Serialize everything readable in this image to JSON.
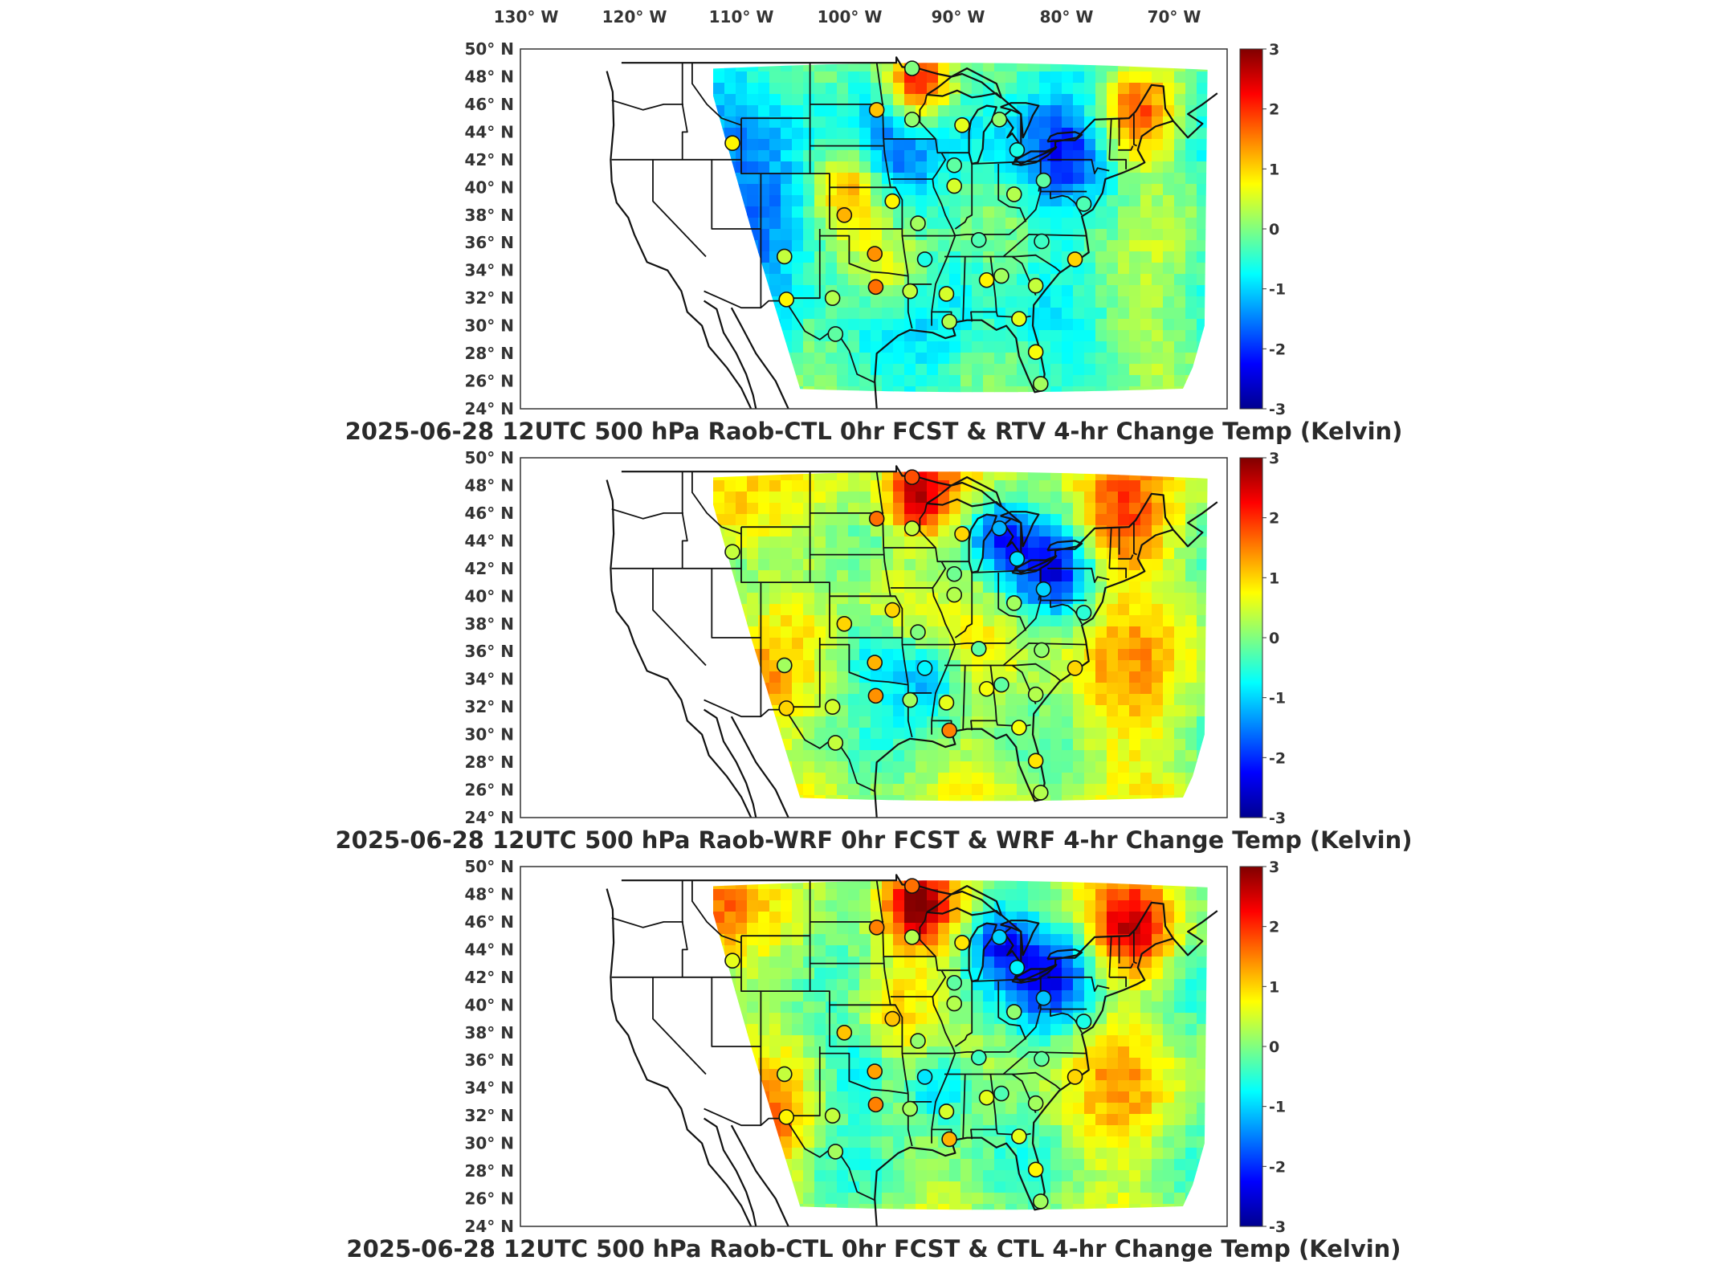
{
  "lon_labels": [
    "130° W",
    "120° W",
    "110° W",
    "100° W",
    "90° W",
    "80° W",
    "70° W"
  ],
  "lat_labels": [
    "50° N",
    "48° N",
    "46° N",
    "44° N",
    "42° N",
    "40° N",
    "38° N",
    "36° N",
    "34° N",
    "32° N",
    "30° N",
    "28° N",
    "26° N",
    "24° N"
  ],
  "colorbar_ticks": [
    "3",
    "2",
    "1",
    "0",
    "-1",
    "-2",
    "-3"
  ],
  "colormap": {
    "name": "jet",
    "min": -3,
    "max": 3,
    "stops": [
      "#00008f",
      "#0000ff",
      "#0080ff",
      "#00ffff",
      "#80ff80",
      "#ffff00",
      "#ff8000",
      "#ff0000",
      "#800000"
    ]
  },
  "panels": [
    {
      "title": "2025-06-28 12UTC 500 hPa Raob-CTL 0hr FCST & RTV 4-hr Change Temp (Kelvin)",
      "base_value": -0.6,
      "blobs": [
        {
          "lon": -93,
          "lat": 47.5,
          "value": 2.4,
          "r": 2.0
        },
        {
          "lon": -71,
          "lat": 45,
          "value": 2.0,
          "r": 2.5
        },
        {
          "lon": -100,
          "lat": 40,
          "value": 1.2,
          "r": 2.0
        },
        {
          "lon": -96,
          "lat": 34,
          "value": 1.0,
          "r": 2.5
        },
        {
          "lon": -78,
          "lat": 42,
          "value": -1.8,
          "r": 2.5
        },
        {
          "lon": -108,
          "lat": 38,
          "value": -1.8,
          "r": 3.0
        },
        {
          "lon": -96,
          "lat": 42,
          "value": -1.2,
          "r": 2.5
        },
        {
          "lon": -72,
          "lat": 32,
          "value": 0.4,
          "r": 4.0
        },
        {
          "lon": -104,
          "lat": 30,
          "value": -0.4,
          "r": 2.0
        },
        {
          "lon": -85,
          "lat": 44,
          "value": -0.8,
          "r": 3.0
        }
      ],
      "stations": [
        {
          "lon": -93.6,
          "lat": 48.6,
          "value": 0.0
        },
        {
          "lon": -97.2,
          "lat": 45.6,
          "value": 1.1
        },
        {
          "lon": -93.6,
          "lat": 44.9,
          "value": 0.1
        },
        {
          "lon": -88.5,
          "lat": 44.5,
          "value": 0.6
        },
        {
          "lon": -84.7,
          "lat": 44.9,
          "value": 0.1
        },
        {
          "lon": -82.9,
          "lat": 42.7,
          "value": -0.6
        },
        {
          "lon": -111.9,
          "lat": 43.2,
          "value": 0.8
        },
        {
          "lon": -89.3,
          "lat": 41.6,
          "value": -0.2
        },
        {
          "lon": -89.3,
          "lat": 40.1,
          "value": 0.5
        },
        {
          "lon": -83.2,
          "lat": 39.5,
          "value": 0.3
        },
        {
          "lon": -80.2,
          "lat": 40.5,
          "value": -0.2
        },
        {
          "lon": -100.5,
          "lat": 38.0,
          "value": 1.2
        },
        {
          "lon": -95.6,
          "lat": 39.0,
          "value": 0.8
        },
        {
          "lon": -93.0,
          "lat": 37.4,
          "value": 0.2
        },
        {
          "lon": -86.8,
          "lat": 36.2,
          "value": -0.3
        },
        {
          "lon": -80.4,
          "lat": 36.1,
          "value": -0.4
        },
        {
          "lon": -76.1,
          "lat": 38.8,
          "value": -0.3
        },
        {
          "lon": -106.6,
          "lat": 35.0,
          "value": 0.4
        },
        {
          "lon": -97.4,
          "lat": 35.2,
          "value": 1.4
        },
        {
          "lon": -92.3,
          "lat": 34.8,
          "value": -0.6
        },
        {
          "lon": -86.0,
          "lat": 33.3,
          "value": 0.8
        },
        {
          "lon": -84.5,
          "lat": 33.6,
          "value": 0.2
        },
        {
          "lon": -81.0,
          "lat": 32.9,
          "value": 0.4
        },
        {
          "lon": -77.0,
          "lat": 34.8,
          "value": 1.0
        },
        {
          "lon": -101.7,
          "lat": 32.0,
          "value": 0.3
        },
        {
          "lon": -97.3,
          "lat": 32.8,
          "value": 1.6
        },
        {
          "lon": -93.8,
          "lat": 32.5,
          "value": 0.4
        },
        {
          "lon": -90.1,
          "lat": 32.3,
          "value": 0.5
        },
        {
          "lon": -106.4,
          "lat": 31.9,
          "value": 0.8
        },
        {
          "lon": -89.8,
          "lat": 30.3,
          "value": 0.3
        },
        {
          "lon": -82.7,
          "lat": 30.5,
          "value": 0.6
        },
        {
          "lon": -101.4,
          "lat": 29.4,
          "value": -0.2
        },
        {
          "lon": -81.0,
          "lat": 28.1,
          "value": 0.7
        },
        {
          "lon": -80.5,
          "lat": 25.8,
          "value": 0.2
        }
      ]
    },
    {
      "title": "2025-06-28 12UTC 500 hPa Raob-WRF 0hr FCST & WRF 4-hr Change Temp (Kelvin)",
      "base_value": 0.2,
      "blobs": [
        {
          "lon": -93,
          "lat": 47.2,
          "value": 2.6,
          "r": 2.0
        },
        {
          "lon": -73,
          "lat": 45,
          "value": 1.8,
          "r": 3.0
        },
        {
          "lon": -113,
          "lat": 46,
          "value": 1.2,
          "r": 2.5
        },
        {
          "lon": -96,
          "lat": 40,
          "value": 1.0,
          "r": 2.5
        },
        {
          "lon": -79,
          "lat": 42,
          "value": -2.0,
          "r": 2.5
        },
        {
          "lon": -85,
          "lat": 44.5,
          "value": -1.8,
          "r": 2.0
        },
        {
          "lon": -92,
          "lat": 34,
          "value": -1.4,
          "r": 2.0
        },
        {
          "lon": -110,
          "lat": 33,
          "value": 1.2,
          "r": 2.5
        },
        {
          "lon": -73,
          "lat": 33,
          "value": 1.0,
          "r": 4.0
        },
        {
          "lon": -98,
          "lat": 36,
          "value": -0.8,
          "r": 2.0
        }
      ],
      "stations": [
        {
          "lon": -93.6,
          "lat": 48.6,
          "value": 1.8
        },
        {
          "lon": -97.2,
          "lat": 45.6,
          "value": 1.6
        },
        {
          "lon": -93.6,
          "lat": 44.9,
          "value": 0.4
        },
        {
          "lon": -88.5,
          "lat": 44.5,
          "value": 1.0
        },
        {
          "lon": -84.7,
          "lat": 44.9,
          "value": -1.2
        },
        {
          "lon": -82.9,
          "lat": 42.7,
          "value": -0.9
        },
        {
          "lon": -111.9,
          "lat": 43.2,
          "value": 0.4
        },
        {
          "lon": -89.3,
          "lat": 41.6,
          "value": -0.1
        },
        {
          "lon": -89.3,
          "lat": 40.1,
          "value": 0.3
        },
        {
          "lon": -83.2,
          "lat": 39.5,
          "value": 0.2
        },
        {
          "lon": -80.2,
          "lat": 40.5,
          "value": -1.0
        },
        {
          "lon": -100.5,
          "lat": 38.0,
          "value": 1.0
        },
        {
          "lon": -95.6,
          "lat": 39.0,
          "value": 1.0
        },
        {
          "lon": -93.0,
          "lat": 37.4,
          "value": 0.0
        },
        {
          "lon": -86.8,
          "lat": 36.2,
          "value": -0.2
        },
        {
          "lon": -80.4,
          "lat": 36.1,
          "value": 0.1
        },
        {
          "lon": -76.1,
          "lat": 38.8,
          "value": -0.5
        },
        {
          "lon": -106.6,
          "lat": 35.0,
          "value": 0.2
        },
        {
          "lon": -97.4,
          "lat": 35.2,
          "value": 1.2
        },
        {
          "lon": -92.3,
          "lat": 34.8,
          "value": -0.8
        },
        {
          "lon": -86.0,
          "lat": 33.3,
          "value": 0.7
        },
        {
          "lon": -84.5,
          "lat": 33.6,
          "value": -0.2
        },
        {
          "lon": -81.0,
          "lat": 32.9,
          "value": 0.3
        },
        {
          "lon": -77.0,
          "lat": 34.8,
          "value": 1.0
        },
        {
          "lon": -101.7,
          "lat": 32.0,
          "value": 0.5
        },
        {
          "lon": -97.3,
          "lat": 32.8,
          "value": 1.4
        },
        {
          "lon": -93.8,
          "lat": 32.5,
          "value": 0.2
        },
        {
          "lon": -90.1,
          "lat": 32.3,
          "value": 0.6
        },
        {
          "lon": -106.4,
          "lat": 31.9,
          "value": 1.0
        },
        {
          "lon": -89.8,
          "lat": 30.3,
          "value": 1.5
        },
        {
          "lon": -82.7,
          "lat": 30.5,
          "value": 0.7
        },
        {
          "lon": -101.4,
          "lat": 29.4,
          "value": 0.4
        },
        {
          "lon": -81.0,
          "lat": 28.1,
          "value": 0.9
        },
        {
          "lon": -80.5,
          "lat": 25.8,
          "value": 0.3
        }
      ]
    },
    {
      "title": "2025-06-28 12UTC 500 hPa Raob-CTL 0hr FCST & CTL 4-hr Change Temp (Kelvin)",
      "base_value": 0.1,
      "blobs": [
        {
          "lon": -93,
          "lat": 47.2,
          "value": 2.6,
          "r": 2.0
        },
        {
          "lon": -71,
          "lat": 45.5,
          "value": 2.2,
          "r": 2.5
        },
        {
          "lon": -114,
          "lat": 46.5,
          "value": 1.4,
          "r": 2.5
        },
        {
          "lon": -96,
          "lat": 40,
          "value": 1.2,
          "r": 2.5
        },
        {
          "lon": -79,
          "lat": 42,
          "value": -2.0,
          "r": 2.5
        },
        {
          "lon": -85,
          "lat": 44.5,
          "value": -1.8,
          "r": 2.0
        },
        {
          "lon": -91,
          "lat": 34,
          "value": -1.6,
          "r": 2.0
        },
        {
          "lon": -108,
          "lat": 31,
          "value": 1.4,
          "r": 2.5
        },
        {
          "lon": -72,
          "lat": 33,
          "value": 0.8,
          "r": 4.0
        },
        {
          "lon": -99,
          "lat": 35.5,
          "value": -0.8,
          "r": 2.0
        }
      ],
      "stations": [
        {
          "lon": -93.6,
          "lat": 48.6,
          "value": 1.6
        },
        {
          "lon": -97.2,
          "lat": 45.6,
          "value": 1.5
        },
        {
          "lon": -93.6,
          "lat": 44.9,
          "value": 0.3
        },
        {
          "lon": -88.5,
          "lat": 44.5,
          "value": 0.9
        },
        {
          "lon": -84.7,
          "lat": 44.9,
          "value": -1.0
        },
        {
          "lon": -82.9,
          "lat": 42.7,
          "value": -0.8
        },
        {
          "lon": -111.9,
          "lat": 43.2,
          "value": 0.6
        },
        {
          "lon": -89.3,
          "lat": 41.6,
          "value": -0.2
        },
        {
          "lon": -89.3,
          "lat": 40.1,
          "value": 0.3
        },
        {
          "lon": -83.2,
          "lat": 39.5,
          "value": 0.1
        },
        {
          "lon": -80.2,
          "lat": 40.5,
          "value": -1.1
        },
        {
          "lon": -100.5,
          "lat": 38.0,
          "value": 1.1
        },
        {
          "lon": -95.6,
          "lat": 39.0,
          "value": 1.1
        },
        {
          "lon": -93.0,
          "lat": 37.4,
          "value": 0.1
        },
        {
          "lon": -86.8,
          "lat": 36.2,
          "value": -0.4
        },
        {
          "lon": -80.4,
          "lat": 36.1,
          "value": -0.2
        },
        {
          "lon": -76.1,
          "lat": 38.8,
          "value": -0.6
        },
        {
          "lon": -106.6,
          "lat": 35.0,
          "value": 0.4
        },
        {
          "lon": -97.4,
          "lat": 35.2,
          "value": 1.3
        },
        {
          "lon": -92.3,
          "lat": 34.8,
          "value": -0.9
        },
        {
          "lon": -86.0,
          "lat": 33.3,
          "value": 0.6
        },
        {
          "lon": -84.5,
          "lat": 33.6,
          "value": -0.3
        },
        {
          "lon": -81.0,
          "lat": 32.9,
          "value": 0.2
        },
        {
          "lon": -77.0,
          "lat": 34.8,
          "value": 1.0
        },
        {
          "lon": -101.7,
          "lat": 32.0,
          "value": 0.4
        },
        {
          "lon": -97.3,
          "lat": 32.8,
          "value": 1.5
        },
        {
          "lon": -93.8,
          "lat": 32.5,
          "value": 0.2
        },
        {
          "lon": -90.1,
          "lat": 32.3,
          "value": 0.5
        },
        {
          "lon": -106.4,
          "lat": 31.9,
          "value": 0.8
        },
        {
          "lon": -89.8,
          "lat": 30.3,
          "value": 1.2
        },
        {
          "lon": -82.7,
          "lat": 30.5,
          "value": 0.6
        },
        {
          "lon": -101.4,
          "lat": 29.4,
          "value": 0.2
        },
        {
          "lon": -81.0,
          "lat": 28.1,
          "value": 0.8
        },
        {
          "lon": -80.5,
          "lat": 25.8,
          "value": 0.2
        }
      ]
    }
  ]
}
